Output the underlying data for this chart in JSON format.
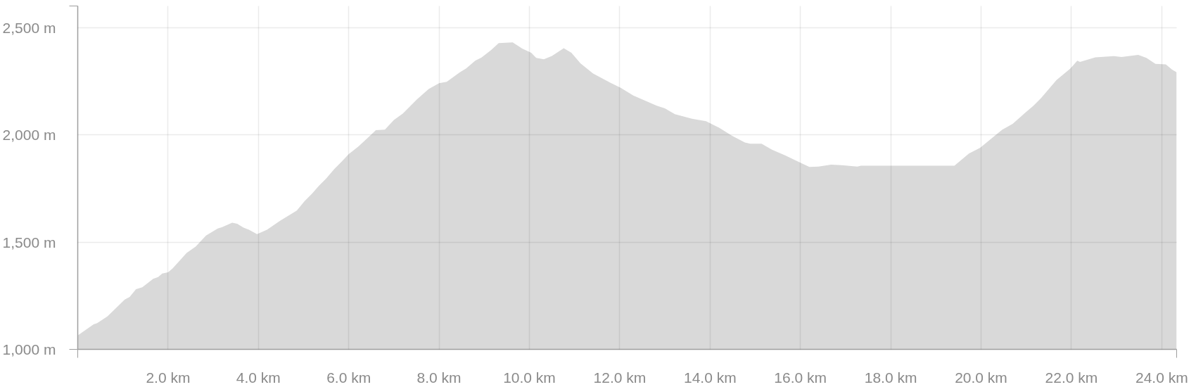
{
  "chart_data": {
    "type": "area",
    "color": "#d9d9d9",
    "x": [
      0,
      0.35,
      0.43,
      0.66,
      1.04,
      1.15,
      1.29,
      1.43,
      1.67,
      1.78,
      1.87,
      2.0,
      2.1,
      2.41,
      2.61,
      2.84,
      3.1,
      3.19,
      3.42,
      3.53,
      3.67,
      3.79,
      3.97,
      4.19,
      4.48,
      4.85,
      5.02,
      5.19,
      5.34,
      5.51,
      5.68,
      5.85,
      6.0,
      6.23,
      6.49,
      6.6,
      6.8,
      7.0,
      7.2,
      7.51,
      7.77,
      8.0,
      8.17,
      8.46,
      8.6,
      8.8,
      8.94,
      9.15,
      9.32,
      9.63,
      9.84,
      10.04,
      10.15,
      10.32,
      10.5,
      10.76,
      10.93,
      11.13,
      11.41,
      11.79,
      12.02,
      12.3,
      12.56,
      12.82,
      13.0,
      13.22,
      13.6,
      13.91,
      14.2,
      14.48,
      14.77,
      14.89,
      15.14,
      15.37,
      15.66,
      16.0,
      16.2,
      16.4,
      16.68,
      16.91,
      17.26,
      17.34,
      17.95,
      18.63,
      19.41,
      19.73,
      19.98,
      20.35,
      20.47,
      20.7,
      20.99,
      21.16,
      21.33,
      21.67,
      21.97,
      22.13,
      22.19,
      22.53,
      22.94,
      23.11,
      23.48,
      23.66,
      23.86,
      24.09,
      24.23,
      24.33
    ],
    "values": [
      1065,
      1116,
      1122,
      1154,
      1232,
      1244,
      1280,
      1289,
      1329,
      1337,
      1353,
      1359,
      1377,
      1449,
      1479,
      1530,
      1563,
      1569,
      1590,
      1585,
      1567,
      1557,
      1537,
      1557,
      1599,
      1647,
      1690,
      1726,
      1762,
      1798,
      1840,
      1876,
      1910,
      1948,
      1999,
      2021,
      2024,
      2069,
      2099,
      2165,
      2213,
      2240,
      2247,
      2291,
      2309,
      2345,
      2360,
      2394,
      2427,
      2430,
      2402,
      2382,
      2358,
      2352,
      2367,
      2403,
      2382,
      2333,
      2285,
      2243,
      2219,
      2183,
      2159,
      2135,
      2123,
      2096,
      2075,
      2063,
      2033,
      1996,
      1964,
      1958,
      1958,
      1930,
      1904,
      1870,
      1850,
      1852,
      1861,
      1858,
      1852,
      1856,
      1856,
      1856,
      1856,
      1912,
      1939,
      2003,
      2024,
      2051,
      2105,
      2135,
      2171,
      2255,
      2307,
      2345,
      2339,
      2361,
      2366,
      2362,
      2372,
      2358,
      2330,
      2328,
      2303,
      2291
    ],
    "xlim": [
      0,
      24.33
    ],
    "ylim": [
      1000,
      2600
    ],
    "xticks": [
      {
        "value": 2,
        "label": "2.0 km"
      },
      {
        "value": 4,
        "label": "4.0 km"
      },
      {
        "value": 6,
        "label": "6.0 km"
      },
      {
        "value": 8,
        "label": "8.0 km"
      },
      {
        "value": 10,
        "label": "10.0 km"
      },
      {
        "value": 12,
        "label": "12.0 km"
      },
      {
        "value": 14,
        "label": "14.0 km"
      },
      {
        "value": 16,
        "label": "16.0 km"
      },
      {
        "value": 18,
        "label": "18.0 km"
      },
      {
        "value": 20,
        "label": "20.0 km"
      },
      {
        "value": 22,
        "label": "22.0 km"
      },
      {
        "value": 24,
        "label": "24.0 km"
      }
    ],
    "yticks": [
      {
        "value": 1000,
        "label": "1,000 m"
      },
      {
        "value": 1500,
        "label": "1,500 m"
      },
      {
        "value": 2000,
        "label": "2,000 m"
      },
      {
        "value": 2500,
        "label": "2,500 m"
      }
    ],
    "grid": true
  }
}
